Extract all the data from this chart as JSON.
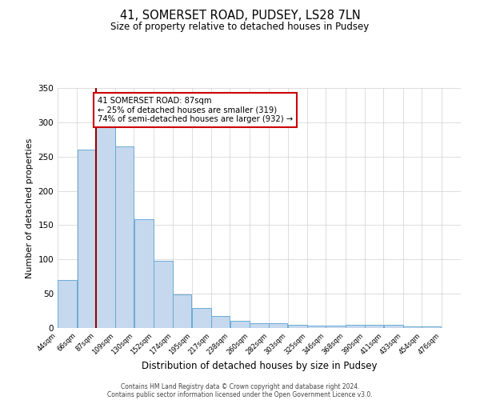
{
  "title": "41, SOMERSET ROAD, PUDSEY, LS28 7LN",
  "subtitle": "Size of property relative to detached houses in Pudsey",
  "xlabel": "Distribution of detached houses by size in Pudsey",
  "ylabel": "Number of detached properties",
  "bar_left_edges": [
    44,
    66,
    87,
    109,
    130,
    152,
    174,
    195,
    217,
    238,
    260,
    282,
    303,
    325,
    346,
    368,
    390,
    411,
    433,
    454
  ],
  "bar_heights": [
    70,
    260,
    293,
    265,
    159,
    98,
    49,
    29,
    18,
    10,
    7,
    7,
    5,
    3,
    3,
    5,
    5,
    5,
    2,
    2
  ],
  "bar_widths": [
    22,
    21,
    22,
    21,
    22,
    22,
    21,
    22,
    21,
    22,
    22,
    21,
    22,
    21,
    22,
    22,
    21,
    22,
    21,
    22
  ],
  "tick_labels": [
    "44sqm",
    "66sqm",
    "87sqm",
    "109sqm",
    "130sqm",
    "152sqm",
    "174sqm",
    "195sqm",
    "217sqm",
    "238sqm",
    "260sqm",
    "282sqm",
    "303sqm",
    "325sqm",
    "346sqm",
    "368sqm",
    "390sqm",
    "411sqm",
    "433sqm",
    "454sqm",
    "476sqm"
  ],
  "tick_positions": [
    44,
    66,
    87,
    109,
    130,
    152,
    174,
    195,
    217,
    238,
    260,
    282,
    303,
    325,
    346,
    368,
    390,
    411,
    433,
    454,
    476
  ],
  "bar_color": "#c5d8ee",
  "bar_edge_color": "#6aaad4",
  "vline_x": 87,
  "vline_color": "#990000",
  "annotation_text": "41 SOMERSET ROAD: 87sqm\n← 25% of detached houses are smaller (319)\n74% of semi-detached houses are larger (932) →",
  "annotation_box_color": "#ffffff",
  "annotation_box_edge_color": "#cc0000",
  "ylim": [
    0,
    350
  ],
  "xlim": [
    44,
    498
  ],
  "yticks": [
    0,
    50,
    100,
    150,
    200,
    250,
    300,
    350
  ],
  "footer_line1": "Contains HM Land Registry data © Crown copyright and database right 2024.",
  "footer_line2": "Contains public sector information licensed under the Open Government Licence v3.0.",
  "background_color": "#ffffff",
  "grid_color": "#d0d0d0"
}
